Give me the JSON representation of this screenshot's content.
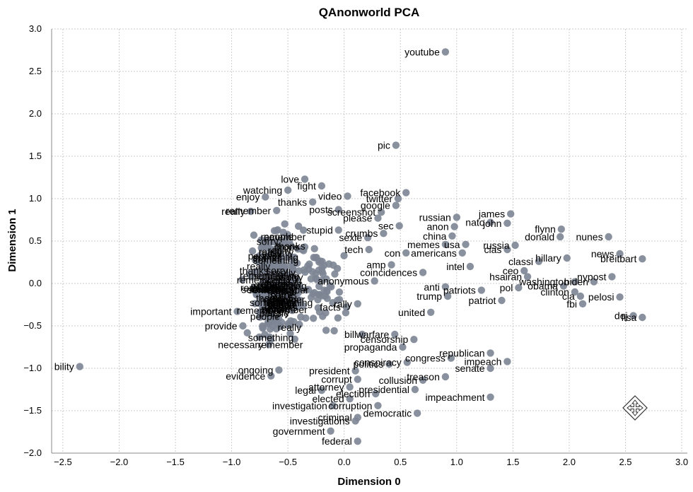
{
  "chart_data": {
    "type": "scatter",
    "title": "QAnonworld PCA",
    "xlabel": "Dimension 0",
    "ylabel": "Dimension 1",
    "xlim": [
      -2.6,
      3.05
    ],
    "ylim": [
      -2.0,
      3.0
    ],
    "x_ticks": [
      "−2.5",
      "−2.0",
      "−1.5",
      "−1.0",
      "−0.5",
      "0.0",
      "0.5",
      "1.0",
      "1.5",
      "2.0",
      "2.5",
      "3.0"
    ],
    "y_ticks": [
      "−2.0",
      "−1.5",
      "−1.0",
      "−0.5",
      "0.0",
      "0.5",
      "1.0",
      "1.5",
      "2.0",
      "2.5",
      "3.0"
    ],
    "grid": true,
    "point_color": "#7d8593",
    "points": [
      {
        "label": "youtube",
        "x": 0.9,
        "y": 2.73
      },
      {
        "label": "pic",
        "x": 0.46,
        "y": 1.63
      },
      {
        "label": "facebook",
        "x": 0.55,
        "y": 1.07
      },
      {
        "label": "twitter",
        "x": 0.48,
        "y": 1.0
      },
      {
        "label": "google",
        "x": 0.46,
        "y": 0.92
      },
      {
        "label": "love",
        "x": -0.35,
        "y": 1.23
      },
      {
        "label": "watching",
        "x": -0.5,
        "y": 1.1
      },
      {
        "label": "fight",
        "x": -0.2,
        "y": 1.15
      },
      {
        "label": "video",
        "x": 0.03,
        "y": 1.03
      },
      {
        "label": "enjoy",
        "x": -0.7,
        "y": 1.02
      },
      {
        "label": "thanks",
        "x": -0.28,
        "y": 0.96
      },
      {
        "label": "really",
        "x": -0.83,
        "y": 0.85
      },
      {
        "label": "remember",
        "x": -0.6,
        "y": 0.86
      },
      {
        "label": "posts",
        "x": -0.05,
        "y": 0.87
      },
      {
        "label": "screenshot",
        "x": 0.33,
        "y": 0.84
      },
      {
        "label": "please",
        "x": 0.3,
        "y": 0.77
      },
      {
        "label": "stupid",
        "x": -0.05,
        "y": 0.63
      },
      {
        "label": "sec",
        "x": 0.49,
        "y": 0.68
      },
      {
        "label": "sexle",
        "x": 0.21,
        "y": 0.54
      },
      {
        "label": "crumbs",
        "x": 0.35,
        "y": 0.59
      },
      {
        "label": "drops",
        "x": -0.35,
        "y": 0.43
      },
      {
        "label": "con",
        "x": 0.55,
        "y": 0.36
      },
      {
        "label": "tech",
        "x": 0.22,
        "y": 0.4
      },
      {
        "label": "amp",
        "x": 0.42,
        "y": 0.22
      },
      {
        "label": "coincidences",
        "x": 0.7,
        "y": 0.13
      },
      {
        "label": "anonymous",
        "x": 0.27,
        "y": 0.03
      },
      {
        "label": "facts",
        "x": 0.02,
        "y": -0.28
      },
      {
        "label": "rally",
        "x": 0.12,
        "y": -0.24
      },
      {
        "label": "united",
        "x": 0.77,
        "y": -0.34
      },
      {
        "label": "anti",
        "x": 0.9,
        "y": -0.04
      },
      {
        "label": "trump",
        "x": 0.92,
        "y": -0.15
      },
      {
        "label": "patriots",
        "x": 1.22,
        "y": -0.08
      },
      {
        "label": "patriot",
        "x": 1.4,
        "y": -0.2
      },
      {
        "label": "pol",
        "x": 1.55,
        "y": -0.05
      },
      {
        "label": "intel",
        "x": 1.12,
        "y": 0.2
      },
      {
        "label": "americans",
        "x": 1.05,
        "y": 0.36
      },
      {
        "label": "memes",
        "x": 0.9,
        "y": 0.46
      },
      {
        "label": "usa",
        "x": 1.08,
        "y": 0.46
      },
      {
        "label": "china",
        "x": 0.96,
        "y": 0.56
      },
      {
        "label": "anon",
        "x": 0.98,
        "y": 0.67
      },
      {
        "label": "russian",
        "x": 1.0,
        "y": 0.78
      },
      {
        "label": "nato",
        "x": 1.3,
        "y": 0.72
      },
      {
        "label": "james",
        "x": 1.48,
        "y": 0.82
      },
      {
        "label": "john",
        "x": 1.45,
        "y": 0.71
      },
      {
        "label": "russia",
        "x": 1.52,
        "y": 0.45
      },
      {
        "label": "cias",
        "x": 1.45,
        "y": 0.4
      },
      {
        "label": "classi",
        "x": 1.73,
        "y": 0.26
      },
      {
        "label": "ceo",
        "x": 1.6,
        "y": 0.15
      },
      {
        "label": "hsairan",
        "x": 1.63,
        "y": 0.08
      },
      {
        "label": "obama",
        "x": 1.95,
        "y": -0.03
      },
      {
        "label": "washington",
        "x": 2.05,
        "y": 0.02
      },
      {
        "label": "clinton",
        "x": 2.05,
        "y": -0.1
      },
      {
        "label": "cia",
        "x": 2.1,
        "y": -0.15
      },
      {
        "label": "fbi",
        "x": 2.12,
        "y": -0.24
      },
      {
        "label": "flynn",
        "x": 1.93,
        "y": 0.64
      },
      {
        "label": "donald",
        "x": 1.92,
        "y": 0.55
      },
      {
        "label": "nunes",
        "x": 2.35,
        "y": 0.55
      },
      {
        "label": "hillary",
        "x": 1.98,
        "y": 0.3
      },
      {
        "label": "pelosi",
        "x": 2.45,
        "y": -0.16
      },
      {
        "label": "biden",
        "x": 2.22,
        "y": 0.02
      },
      {
        "label": "nypost",
        "x": 2.38,
        "y": 0.08
      },
      {
        "label": "breitbart",
        "x": 2.65,
        "y": 0.29
      },
      {
        "label": "news",
        "x": 2.45,
        "y": 0.35
      },
      {
        "label": "doj",
        "x": 2.57,
        "y": -0.38
      },
      {
        "label": "fisa",
        "x": 2.65,
        "y": -0.4
      },
      {
        "label": "warfare",
        "x": 0.45,
        "y": -0.6
      },
      {
        "label": "censorship",
        "x": 0.62,
        "y": -0.66
      },
      {
        "label": "bill",
        "x": 0.16,
        "y": -0.6
      },
      {
        "label": "propaganda",
        "x": 0.52,
        "y": -0.75
      },
      {
        "label": "congress",
        "x": 0.95,
        "y": -0.88
      },
      {
        "label": "republican",
        "x": 1.3,
        "y": -0.82
      },
      {
        "label": "impeach",
        "x": 1.45,
        "y": -0.92
      },
      {
        "label": "senate",
        "x": 1.3,
        "y": -1.0
      },
      {
        "label": "politics",
        "x": 0.4,
        "y": -0.95
      },
      {
        "label": "conspiracy",
        "x": 0.56,
        "y": -0.93
      },
      {
        "label": "treason",
        "x": 0.9,
        "y": -1.1
      },
      {
        "label": "collusion",
        "x": 0.7,
        "y": -1.14
      },
      {
        "label": "president",
        "x": 0.1,
        "y": -1.03
      },
      {
        "label": "corrupt",
        "x": 0.12,
        "y": -1.13
      },
      {
        "label": "attorney",
        "x": 0.05,
        "y": -1.22
      },
      {
        "label": "presidential",
        "x": 0.63,
        "y": -1.25
      },
      {
        "label": "election",
        "x": 0.28,
        "y": -1.3
      },
      {
        "label": "elected",
        "x": 0.05,
        "y": -1.36
      },
      {
        "label": "legal",
        "x": -0.2,
        "y": -1.26
      },
      {
        "label": "impeachment",
        "x": 1.3,
        "y": -1.34
      },
      {
        "label": "corruption",
        "x": 0.3,
        "y": -1.44
      },
      {
        "label": "investigation",
        "x": -0.1,
        "y": -1.44
      },
      {
        "label": "democratic",
        "x": 0.65,
        "y": -1.53
      },
      {
        "label": "criminal",
        "x": 0.12,
        "y": -1.58
      },
      {
        "label": "investigations",
        "x": 0.1,
        "y": -1.62
      },
      {
        "label": "government",
        "x": -0.12,
        "y": -1.74
      },
      {
        "label": "federal",
        "x": 0.12,
        "y": -1.86
      },
      {
        "label": "ongoing",
        "x": -0.58,
        "y": -1.02
      },
      {
        "label": "evidence",
        "x": -0.65,
        "y": -1.09
      },
      {
        "label": "necessary",
        "x": -0.67,
        "y": -0.72
      },
      {
        "label": "provide",
        "x": -0.9,
        "y": -0.5
      },
      {
        "label": "important",
        "x": -0.95,
        "y": -0.33
      },
      {
        "label": "bility",
        "x": -2.35,
        "y": -0.98
      }
    ],
    "cluster_labels": [
      "something",
      "really",
      "thanks",
      "remember",
      "sorry",
      "people"
    ],
    "cluster_center": [
      -0.62,
      0.0
    ]
  },
  "pan_tool_icon": "move-arrows-icon"
}
